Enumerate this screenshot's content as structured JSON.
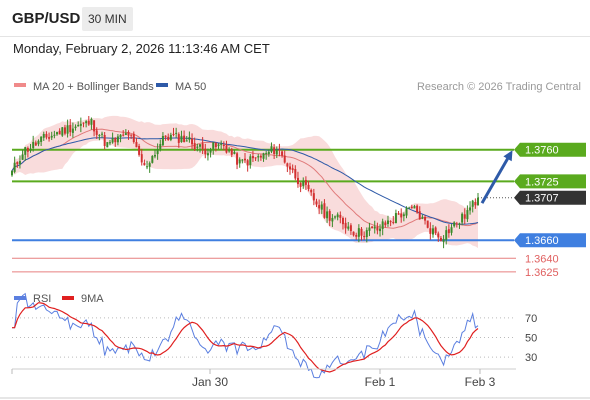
{
  "header": {
    "pair": "GBP/USD",
    "timeframe": "30 MIN",
    "datetime": "Monday, February 2, 2026 11:13:46 AM CET"
  },
  "colors": {
    "up": "#3a8a2a",
    "down": "#d23030",
    "band_fill": "#f7d0d0",
    "ma20": "#e07a7a",
    "ma50": "#2e5aa8",
    "resistance": "#5aaa1e",
    "support": "#3f7fe0",
    "target_red": "#e06060",
    "arrow": "#2e5aa8",
    "rsi": "#5b7fe0",
    "rsi_ma": "#e02020",
    "price_tag": "#333333"
  },
  "chart_data": [
    {
      "type": "candlestick",
      "title": "",
      "legend": [
        {
          "name": "MA 20 + Bollinger Bands",
          "color": "#f08a8a"
        },
        {
          "name": "MA 50",
          "color": "#2e5aa8"
        }
      ],
      "credit": "Research © 2026 Trading Central",
      "ylim": [
        1.3616,
        1.3815
      ],
      "x_ticks": [
        "Jan 30",
        "Feb 1",
        "Feb 3"
      ],
      "levels": [
        {
          "value": 1.376,
          "label": "1.3760",
          "kind": "resistance",
          "style": "tag"
        },
        {
          "value": 1.3725,
          "label": "1.3725",
          "kind": "resistance",
          "style": "tag"
        },
        {
          "value": 1.3707,
          "label": "1.3707",
          "kind": "last",
          "style": "tag"
        },
        {
          "value": 1.366,
          "label": "1.3660",
          "kind": "support",
          "style": "tag"
        },
        {
          "value": 1.364,
          "label": "1.3640",
          "kind": "target",
          "style": "text"
        },
        {
          "value": 1.3625,
          "label": "1.3625",
          "kind": "target",
          "style": "text"
        }
      ],
      "arrow": {
        "from": 1.3701,
        "to": 1.3758
      }
    },
    {
      "type": "line",
      "title": "",
      "legend": [
        {
          "name": "RSI",
          "color": "#5b7fe0"
        },
        {
          "name": "9MA",
          "color": "#e02020"
        }
      ],
      "ylim": [
        23,
        76
      ],
      "y_ticks": [
        "70",
        "50",
        "30"
      ],
      "y_tick_values": [
        70,
        50,
        30
      ]
    }
  ]
}
